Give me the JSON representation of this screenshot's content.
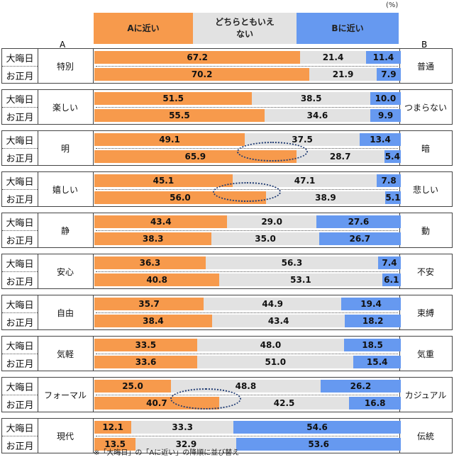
{
  "chart_data": {
    "type": "bar",
    "stacked": true,
    "orientation": "horizontal",
    "unit": "(%)",
    "column_labels": {
      "a": "A",
      "b": "B"
    },
    "legend": [
      {
        "name": "Aに近い",
        "color": "#F79A4C"
      },
      {
        "name": "どちらともいえない",
        "color": "#E2E2E2"
      },
      {
        "name": "Bに近い",
        "color": "#6699F0"
      }
    ],
    "series_rows": [
      "大晦日",
      "お正月"
    ],
    "groups": [
      {
        "a": "特別",
        "b": "普通",
        "values": [
          [
            67.2,
            21.4,
            11.4
          ],
          [
            70.2,
            21.9,
            7.9
          ]
        ]
      },
      {
        "a": "楽しい",
        "b": "つまらない",
        "values": [
          [
            51.5,
            38.5,
            10.0
          ],
          [
            55.5,
            34.6,
            9.9
          ]
        ]
      },
      {
        "a": "明",
        "b": "暗",
        "values": [
          [
            49.1,
            37.5,
            13.4
          ],
          [
            65.9,
            28.7,
            5.4
          ]
        ],
        "highlight": true
      },
      {
        "a": "嬉しい",
        "b": "悲しい",
        "values": [
          [
            45.1,
            47.1,
            7.8
          ],
          [
            56.0,
            38.9,
            5.1
          ]
        ],
        "highlight": true
      },
      {
        "a": "静",
        "b": "動",
        "values": [
          [
            43.4,
            29.0,
            27.6
          ],
          [
            38.3,
            35.0,
            26.7
          ]
        ]
      },
      {
        "a": "安心",
        "b": "不安",
        "values": [
          [
            36.3,
            56.3,
            7.4
          ],
          [
            40.8,
            53.1,
            6.1
          ]
        ]
      },
      {
        "a": "自由",
        "b": "束縛",
        "values": [
          [
            35.7,
            44.9,
            19.4
          ],
          [
            38.4,
            43.4,
            18.2
          ]
        ]
      },
      {
        "a": "気軽",
        "b": "気重",
        "values": [
          [
            33.5,
            48.0,
            18.5
          ],
          [
            33.6,
            51.0,
            15.4
          ]
        ]
      },
      {
        "a": "フォーマル",
        "b": "カジュアル",
        "values": [
          [
            25.0,
            48.8,
            26.2
          ],
          [
            40.7,
            42.5,
            16.8
          ]
        ],
        "highlight": true
      },
      {
        "a": "現代",
        "b": "伝統",
        "values": [
          [
            12.1,
            33.3,
            54.6
          ],
          [
            13.5,
            32.9,
            53.6
          ]
        ]
      }
    ],
    "note": "※「大晦日」の「Aに近い」の降順に並び替え"
  }
}
